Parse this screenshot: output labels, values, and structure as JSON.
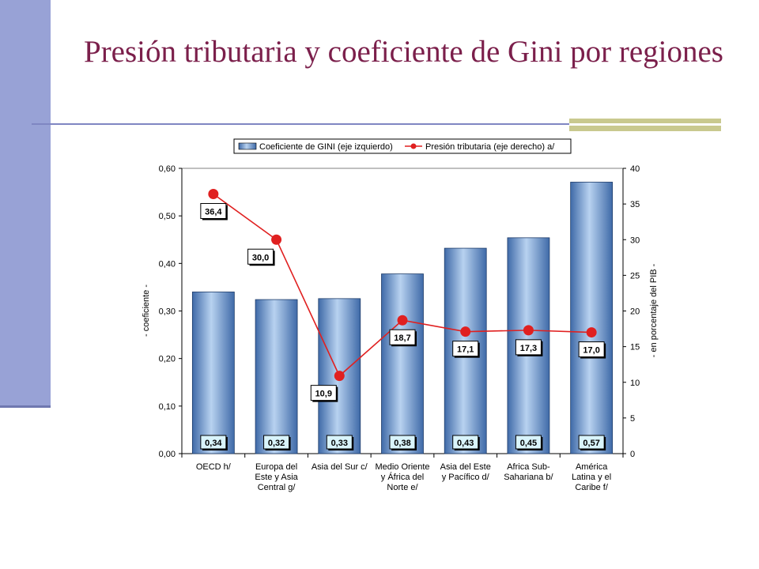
{
  "slide": {
    "title": "Presión tributaria y coeficiente de Gini por regiones"
  },
  "colors": {
    "bar": "#6f9bd1",
    "line": "#e02020",
    "title": "#7b1f4b"
  },
  "chart_data": {
    "type": "bar",
    "categories": [
      [
        "OECD h/"
      ],
      [
        "Europa del",
        "Este y Asia",
        "Central g/"
      ],
      [
        "Asia del Sur c/"
      ],
      [
        "Medio Oriente",
        "y África del",
        "Norte e/"
      ],
      [
        "Asia del Este",
        "y Pacífico d/"
      ],
      [
        "Africa Sub-",
        "Sahariana b/"
      ],
      [
        "América",
        "Latina y el",
        "Caribe f/"
      ]
    ],
    "series": [
      {
        "name": "Coeficiente de GINI (eje izquierdo)",
        "type": "bar",
        "axis": "left",
        "values": [
          0.34,
          0.324,
          0.326,
          0.378,
          0.432,
          0.454,
          0.571
        ],
        "labels": [
          "0,34",
          "0,32",
          "0,33",
          "0,38",
          "0,43",
          "0,45",
          "0,57"
        ]
      },
      {
        "name": "Presión tributaria (eje derecho) a/",
        "type": "line",
        "axis": "right",
        "values": [
          36.4,
          30.0,
          10.9,
          18.7,
          17.1,
          17.3,
          17.0
        ],
        "labels": [
          "36,4",
          "30,0",
          "10,9",
          "18,7",
          "17,1",
          "17,3",
          "17,0"
        ]
      }
    ],
    "ylabel_left": "- coeficiente -",
    "ylabel_right": "- en porcentaje del PIB -",
    "ylim_left": [
      0,
      0.6
    ],
    "ylim_right": [
      0,
      40
    ],
    "yticks_left": [
      "0,00",
      "0,10",
      "0,20",
      "0,30",
      "0,40",
      "0,50",
      "0,60"
    ],
    "yticks_right": [
      "0",
      "5",
      "10",
      "15",
      "20",
      "25",
      "30",
      "35",
      "40"
    ],
    "grid": false,
    "legend_position": "top"
  }
}
